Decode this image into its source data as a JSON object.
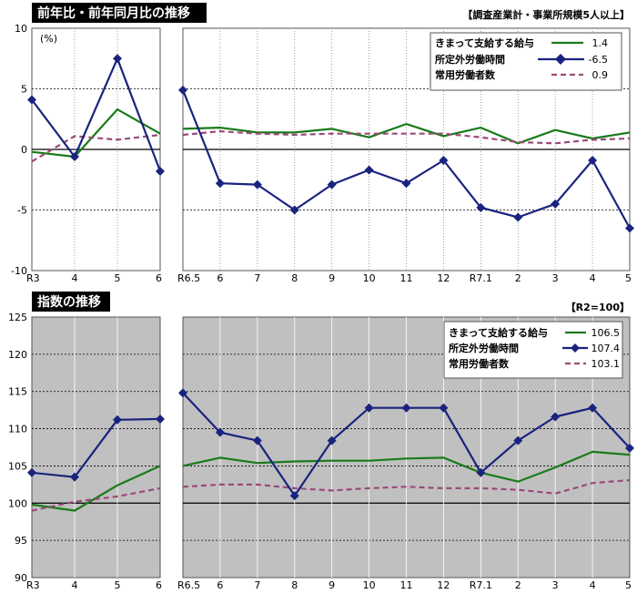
{
  "colors": {
    "wages": "#1a7a1a",
    "hours": "#1a237e",
    "employees": "#9c4a78"
  },
  "top": {
    "title": "前年比・前年同月比の推移",
    "note": "【調査産業計・事業所規模5人以上】",
    "unit": "(%)",
    "legend": [
      {
        "label": "きまって支給する給与",
        "value": "1.4"
      },
      {
        "label": "所定外労働時間",
        "value": "-6.5"
      },
      {
        "label": "常用労働者数",
        "value": "0.9"
      }
    ]
  },
  "bottom": {
    "title": "指数の推移",
    "note": "【R2=100】",
    "legend": [
      {
        "label": "きまって支給する給与",
        "value": "106.5"
      },
      {
        "label": "所定外労働時間",
        "value": "107.4"
      },
      {
        "label": "常用労働者数",
        "value": "103.1"
      }
    ]
  },
  "chart_data": [
    {
      "type": "line",
      "title": "前年比・前年同月比の推移",
      "panel": "left",
      "categories": [
        "R3",
        "4",
        "5",
        "6"
      ],
      "ylim": [
        -10,
        10
      ],
      "yticks": [
        -10,
        -5,
        0,
        5,
        10
      ],
      "series": [
        {
          "name": "きまって支給する給与",
          "values": [
            -0.2,
            -0.6,
            3.3,
            1.3
          ]
        },
        {
          "name": "所定外労働時間",
          "values": [
            4.1,
            -0.6,
            7.5,
            -1.8
          ]
        },
        {
          "name": "常用労働者数",
          "values": [
            -1.0,
            1.1,
            0.8,
            1.2
          ]
        }
      ]
    },
    {
      "type": "line",
      "title": "前年比・前年同月比の推移",
      "panel": "right",
      "categories": [
        "R6.5",
        "6",
        "7",
        "8",
        "9",
        "10",
        "11",
        "12",
        "R7.1",
        "2",
        "3",
        "4",
        "5"
      ],
      "ylim": [
        -10,
        10
      ],
      "yticks": [
        -10,
        -5,
        0,
        5,
        10
      ],
      "series": [
        {
          "name": "きまって支給する給与",
          "values": [
            1.7,
            1.8,
            1.4,
            1.4,
            1.7,
            1.0,
            2.1,
            1.1,
            1.8,
            0.5,
            1.6,
            0.9,
            1.4
          ]
        },
        {
          "name": "所定外労働時間",
          "values": [
            4.9,
            -2.8,
            -2.9,
            -5.0,
            -2.9,
            -1.7,
            -2.8,
            -0.9,
            -4.8,
            -5.6,
            -4.5,
            -0.9,
            -6.5
          ]
        },
        {
          "name": "常用労働者数",
          "values": [
            1.2,
            1.5,
            1.3,
            1.2,
            1.3,
            1.3,
            1.3,
            1.3,
            1.0,
            0.6,
            0.5,
            0.8,
            0.9
          ]
        }
      ]
    },
    {
      "type": "line",
      "title": "指数の推移",
      "panel": "left",
      "categories": [
        "R3",
        "4",
        "5",
        "6"
      ],
      "ylim": [
        90,
        125
      ],
      "yticks": [
        90,
        95,
        100,
        105,
        110,
        115,
        120,
        125
      ],
      "series": [
        {
          "name": "きまって支給する給与",
          "values": [
            99.8,
            99.0,
            102.4,
            105.0
          ]
        },
        {
          "name": "所定外労働時間",
          "values": [
            104.1,
            103.5,
            111.2,
            111.3
          ]
        },
        {
          "name": "常用労働者数",
          "values": [
            99.0,
            100.2,
            100.9,
            102.0
          ]
        }
      ]
    },
    {
      "type": "line",
      "title": "指数の推移",
      "panel": "right",
      "categories": [
        "R6.5",
        "6",
        "7",
        "8",
        "9",
        "10",
        "11",
        "12",
        "R7.1",
        "2",
        "3",
        "4",
        "5"
      ],
      "ylim": [
        90,
        125
      ],
      "yticks": [
        90,
        95,
        100,
        105,
        110,
        115,
        120,
        125
      ],
      "series": [
        {
          "name": "きまって支給する給与",
          "values": [
            105.0,
            106.1,
            105.4,
            105.6,
            105.7,
            105.7,
            106.0,
            106.1,
            104.1,
            102.9,
            104.8,
            106.9,
            106.5
          ]
        },
        {
          "name": "所定外労働時間",
          "values": [
            114.8,
            109.5,
            108.4,
            101.0,
            108.4,
            112.8,
            112.8,
            112.8,
            104.1,
            108.4,
            111.6,
            112.8,
            107.4
          ]
        },
        {
          "name": "常用労働者数",
          "values": [
            102.2,
            102.5,
            102.5,
            102.0,
            101.7,
            102.0,
            102.2,
            102.0,
            102.0,
            101.8,
            101.3,
            102.7,
            103.1
          ]
        }
      ]
    }
  ]
}
